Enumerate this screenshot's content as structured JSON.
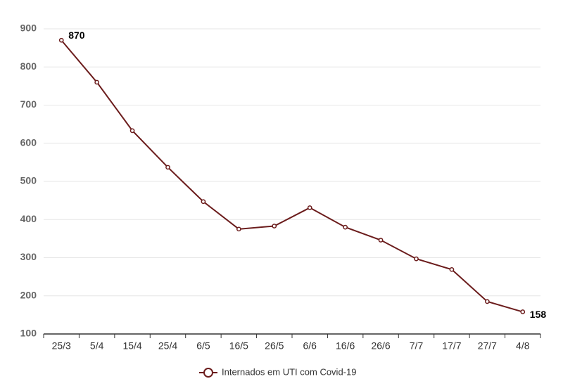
{
  "chart_data": {
    "type": "line",
    "categories": [
      "25/3",
      "5/4",
      "15/4",
      "25/4",
      "6/5",
      "16/5",
      "26/5",
      "6/6",
      "16/6",
      "26/6",
      "7/7",
      "17/7",
      "27/7",
      "4/8"
    ],
    "series": [
      {
        "name": "Internados em UTI com Covid-19",
        "color": "#6b1c1c",
        "values": [
          870,
          760,
          633,
          537,
          447,
          375,
          383,
          431,
          380,
          346,
          297,
          269,
          185,
          158
        ]
      }
    ],
    "data_labels": "first-last",
    "ylim": [
      100,
      900
    ],
    "yticks": [
      100,
      200,
      300,
      400,
      500,
      600,
      700,
      800,
      900
    ],
    "grid": true,
    "legend": "bottom"
  }
}
